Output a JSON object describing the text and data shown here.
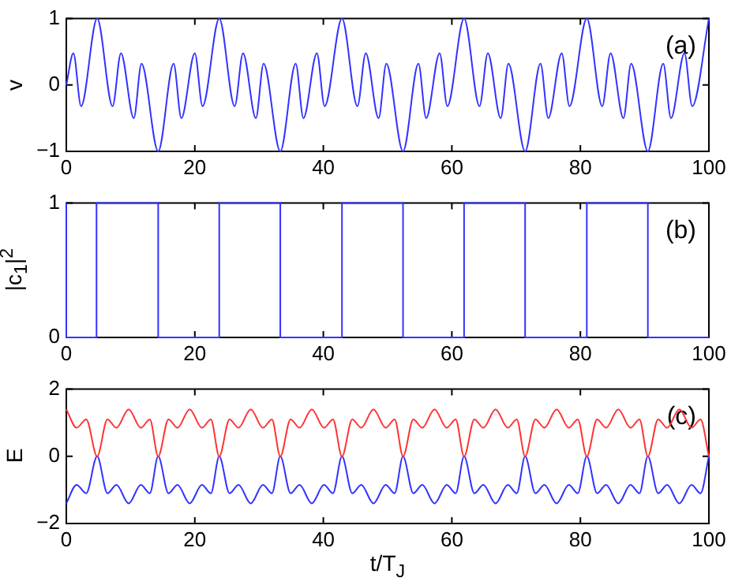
{
  "chart_data": [
    {
      "type": "line",
      "ylabel": "v",
      "xlim": [
        0,
        100
      ],
      "xticks": [
        0,
        20,
        40,
        60,
        80,
        100
      ],
      "ylim": [
        -1,
        1
      ],
      "yticks": [
        {
          "value": -1,
          "label": "−1"
        },
        0,
        1
      ],
      "annotations": [
        "(a)"
      ],
      "series": [
        {
          "color": "#3333ff",
          "x": [
            0,
            1.1,
            2.3,
            4.8,
            7.2,
            8.5,
            10.5,
            11.7,
            14.3,
            16.7,
            17.9,
            20.0,
            21.2,
            23.8,
            26.2,
            27.5,
            29.5,
            30.7,
            33.3,
            35.7,
            36.9,
            39.0,
            40.2,
            42.9,
            45.3,
            46.6,
            48.6,
            49.8,
            52.4,
            54.8,
            56.0,
            58.1,
            59.3,
            61.9,
            64.3,
            65.6,
            67.6,
            68.8,
            71.4,
            73.8,
            75.0,
            77.1,
            78.3,
            81.0,
            83.4,
            84.7,
            86.7,
            87.9,
            90.5,
            92.9,
            94.1,
            96.2,
            97.4,
            100
          ],
          "values": [
            0,
            0.48,
            -0.32,
            1,
            -0.32,
            0.48,
            -0.5,
            0.32,
            -1,
            0.32,
            -0.5,
            0.48,
            -0.32,
            1,
            -0.32,
            0.48,
            -0.5,
            0.32,
            -1,
            0.32,
            -0.5,
            0.48,
            -0.32,
            1,
            -0.32,
            0.48,
            -0.5,
            0.32,
            -1,
            0.32,
            -0.5,
            0.48,
            -0.32,
            1,
            -0.32,
            0.48,
            -0.5,
            0.32,
            -1,
            0.32,
            -0.5,
            0.48,
            -0.32,
            1,
            -0.32,
            0.48,
            -0.5,
            0.32,
            -1,
            0.32,
            -0.5,
            0.48,
            -0.32,
            1
          ]
        }
      ]
    },
    {
      "type": "step",
      "ylabel": "|c$_{1}$|$^{2}$",
      "xlim": [
        0,
        100
      ],
      "xticks": [
        0,
        20,
        40,
        60,
        80,
        100
      ],
      "ylim": [
        0,
        1
      ],
      "yticks": [
        0,
        1
      ],
      "annotations": [
        "(b)"
      ],
      "series": [
        {
          "color": "#3333ff",
          "x": [
            0,
            4.7,
            14.3,
            23.8,
            33.3,
            42.9,
            52.4,
            61.9,
            71.4,
            81.0,
            90.5,
            99.8,
            100
          ],
          "values": [
            1,
            0,
            1,
            0,
            1,
            0,
            1,
            0,
            1,
            0,
            1,
            0,
            0
          ]
        }
      ]
    },
    {
      "type": "line",
      "ylabel": "E",
      "xlabel": "t/T$_{J}$",
      "xlim": [
        0,
        100
      ],
      "xticks": [
        0,
        20,
        40,
        60,
        80,
        100
      ],
      "ylim": [
        -2,
        2
      ],
      "yticks": [
        {
          "value": -2,
          "label": "−2"
        },
        0,
        2
      ],
      "annotations": [
        "(c)"
      ],
      "series": [
        {
          "color": "#ff3333",
          "x": [
            0,
            1.6,
            3.1,
            4.8,
            6.4,
            7.8,
            9.7,
            11.6,
            13.0,
            14.3,
            15.9,
            17.3,
            19.2,
            21.1,
            22.5,
            23.8,
            25.4,
            26.8,
            28.7,
            30.6,
            32.0,
            33.3,
            34.9,
            36.3,
            38.2,
            40.1,
            41.5,
            42.9,
            44.5,
            45.9,
            47.8,
            49.7,
            51.1,
            52.4,
            54.0,
            55.4,
            57.3,
            59.2,
            60.6,
            61.9,
            63.5,
            64.9,
            66.8,
            68.7,
            70.1,
            71.4,
            73.0,
            74.4,
            76.3,
            78.2,
            79.6,
            81.0,
            82.6,
            84.0,
            85.9,
            87.8,
            89.2,
            90.5,
            92.1,
            93.5,
            95.4,
            97.3,
            98.7,
            100
          ],
          "values": [
            1.4,
            0.85,
            1.1,
            0,
            1.1,
            0.85,
            1.4,
            0.85,
            1.1,
            0,
            1.1,
            0.85,
            1.4,
            0.85,
            1.1,
            0,
            1.1,
            0.85,
            1.4,
            0.85,
            1.1,
            0,
            1.1,
            0.85,
            1.4,
            0.85,
            1.1,
            0,
            1.1,
            0.85,
            1.4,
            0.85,
            1.1,
            0,
            1.1,
            0.85,
            1.4,
            0.85,
            1.1,
            0,
            1.1,
            0.85,
            1.4,
            0.85,
            1.1,
            0,
            1.1,
            0.85,
            1.4,
            0.85,
            1.1,
            0,
            1.1,
            0.85,
            1.4,
            0.85,
            1.1,
            0,
            1.1,
            0.85,
            1.4,
            0.85,
            1.1,
            0
          ]
        },
        {
          "color": "#3333ff",
          "x": [
            0,
            1.6,
            3.1,
            4.8,
            6.4,
            7.8,
            9.7,
            11.6,
            13.0,
            14.3,
            15.9,
            17.3,
            19.2,
            21.1,
            22.5,
            23.8,
            25.4,
            26.8,
            28.7,
            30.6,
            32.0,
            33.3,
            34.9,
            36.3,
            38.2,
            40.1,
            41.5,
            42.9,
            44.5,
            45.9,
            47.8,
            49.7,
            51.1,
            52.4,
            54.0,
            55.4,
            57.3,
            59.2,
            60.6,
            61.9,
            63.5,
            64.9,
            66.8,
            68.7,
            70.1,
            71.4,
            73.0,
            74.4,
            76.3,
            78.2,
            79.6,
            81.0,
            82.6,
            84.0,
            85.9,
            87.8,
            89.2,
            90.5,
            92.1,
            93.5,
            95.4,
            97.3,
            98.7,
            100
          ],
          "values": [
            -1.4,
            -0.85,
            -1.1,
            0,
            -1.1,
            -0.85,
            -1.4,
            -0.85,
            -1.1,
            0,
            -1.1,
            -0.85,
            -1.4,
            -0.85,
            -1.1,
            0,
            -1.1,
            -0.85,
            -1.4,
            -0.85,
            -1.1,
            0,
            -1.1,
            -0.85,
            -1.4,
            -0.85,
            -1.1,
            0,
            -1.1,
            -0.85,
            -1.4,
            -0.85,
            -1.1,
            0,
            -1.1,
            -0.85,
            -1.4,
            -0.85,
            -1.1,
            0,
            -1.1,
            -0.85,
            -1.4,
            -0.85,
            -1.1,
            0,
            -1.1,
            -0.85,
            -1.4,
            -0.85,
            -1.1,
            0,
            -1.1,
            -0.85,
            -1.4,
            -0.85,
            -1.1,
            0,
            -1.1,
            -0.85,
            -1.4,
            -0.85,
            -1.1,
            0
          ]
        }
      ]
    }
  ]
}
